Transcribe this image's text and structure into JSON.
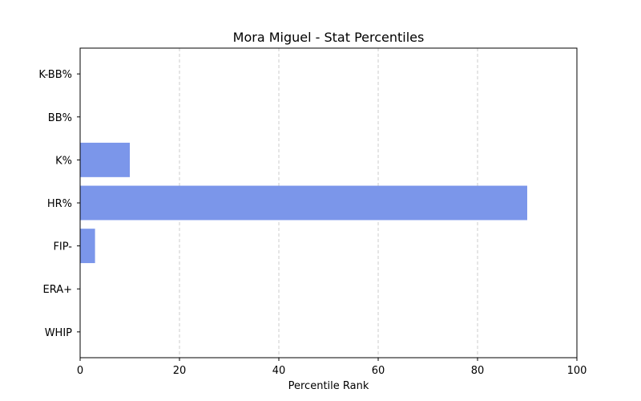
{
  "chart_data": {
    "type": "bar",
    "orientation": "horizontal",
    "title": "Mora Miguel - Stat Percentiles",
    "xlabel": "Percentile Rank",
    "ylabel": "",
    "xlim": [
      0,
      100
    ],
    "xticks": [
      0,
      20,
      40,
      60,
      80,
      100
    ],
    "grid": "vertical dashed",
    "bar_color": "#7b96ea",
    "categories": [
      "WHIP",
      "ERA+",
      "FIP-",
      "HR%",
      "K%",
      "BB%",
      "K-BB%"
    ],
    "values": [
      0,
      0,
      3,
      90,
      10,
      0,
      0
    ]
  }
}
